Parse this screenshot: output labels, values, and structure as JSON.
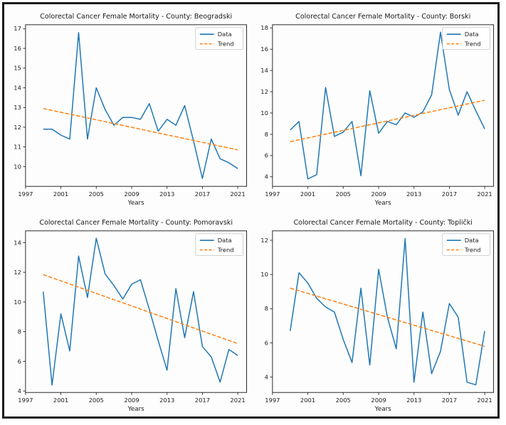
{
  "page": {
    "background": "#ffffff",
    "frame_color": "#1a1a1a"
  },
  "colors": {
    "data_line": "#1f77b4",
    "trend_line": "#ff7f0e"
  },
  "chart_data": [
    {
      "type": "line",
      "title": "Colorectal Cancer Female Mortality - County: Beogradski",
      "xlabel": "Years",
      "x": [
        1999,
        2000,
        2001,
        2002,
        2003,
        2004,
        2005,
        2006,
        2007,
        2008,
        2009,
        2010,
        2011,
        2012,
        2013,
        2014,
        2015,
        2016,
        2017,
        2018,
        2019,
        2020,
        2021
      ],
      "series": [
        {
          "name": "Data",
          "color": "#1f77b4",
          "style": "solid",
          "values": [
            11.9,
            11.9,
            11.6,
            11.4,
            16.8,
            11.4,
            14.0,
            12.9,
            12.1,
            12.5,
            12.5,
            12.4,
            13.2,
            11.8,
            12.4,
            12.1,
            13.1,
            11.3,
            9.4,
            11.4,
            10.4,
            10.2,
            9.9
          ]
        },
        {
          "name": "Trend",
          "color": "#ff7f0e",
          "style": "dashed",
          "x": [
            1999,
            2021
          ],
          "values": [
            12.95,
            10.85
          ]
        }
      ],
      "legend": {
        "position": "upper-right",
        "entries": [
          "Data",
          "Trend"
        ]
      },
      "grid": false,
      "xlim": [
        1997,
        2022
      ],
      "ylim": [
        9.0,
        17.2
      ],
      "xticks": [
        1997,
        2001,
        2005,
        2009,
        2013,
        2017,
        2021
      ],
      "yticks": [
        10,
        11,
        12,
        13,
        14,
        15,
        16,
        17
      ]
    },
    {
      "type": "line",
      "title": "Colorectal Cancer Female Mortality - County: Borski",
      "xlabel": "Years",
      "x": [
        1999,
        2000,
        2001,
        2002,
        2003,
        2004,
        2005,
        2006,
        2007,
        2008,
        2009,
        2010,
        2011,
        2012,
        2013,
        2014,
        2015,
        2016,
        2017,
        2018,
        2019,
        2020,
        2021
      ],
      "series": [
        {
          "name": "Data",
          "color": "#1f77b4",
          "style": "solid",
          "values": [
            8.4,
            9.2,
            3.8,
            4.2,
            12.4,
            7.8,
            8.2,
            9.2,
            4.1,
            12.1,
            8.1,
            9.2,
            8.9,
            10.0,
            9.6,
            10.1,
            11.7,
            17.6,
            12.2,
            9.8,
            12.0,
            10.2,
            8.5
          ]
        },
        {
          "name": "Trend",
          "color": "#ff7f0e",
          "style": "dashed",
          "x": [
            1999,
            2021
          ],
          "values": [
            7.3,
            11.2
          ]
        }
      ],
      "legend": {
        "position": "upper-right",
        "entries": [
          "Data",
          "Trend"
        ]
      },
      "grid": false,
      "xlim": [
        1997,
        2022
      ],
      "ylim": [
        3.1,
        18.3
      ],
      "xticks": [
        1997,
        2001,
        2005,
        2009,
        2013,
        2017,
        2021
      ],
      "yticks": [
        4,
        6,
        8,
        10,
        12,
        14,
        16,
        18
      ]
    },
    {
      "type": "line",
      "title": "Colorectal Cancer Female Mortality - County: Pomoravski",
      "xlabel": "Years",
      "x": [
        1999,
        2000,
        2001,
        2002,
        2003,
        2004,
        2005,
        2006,
        2007,
        2008,
        2009,
        2010,
        2011,
        2012,
        2013,
        2014,
        2015,
        2016,
        2017,
        2018,
        2019,
        2020,
        2021
      ],
      "series": [
        {
          "name": "Data",
          "color": "#1f77b4",
          "style": "solid",
          "values": [
            10.7,
            4.4,
            9.2,
            6.7,
            13.1,
            10.3,
            14.3,
            11.9,
            11.1,
            10.2,
            11.2,
            11.5,
            9.5,
            7.4,
            5.4,
            10.9,
            7.6,
            10.7,
            7.0,
            6.3,
            4.6,
            6.8,
            6.4
          ]
        },
        {
          "name": "Trend",
          "color": "#ff7f0e",
          "style": "dashed",
          "x": [
            1999,
            2021
          ],
          "values": [
            11.85,
            7.2
          ]
        }
      ],
      "legend": {
        "position": "upper-right",
        "entries": [
          "Data",
          "Trend"
        ]
      },
      "grid": false,
      "xlim": [
        1997,
        2022
      ],
      "ylim": [
        3.9,
        14.8
      ],
      "xticks": [
        1997,
        2001,
        2005,
        2009,
        2013,
        2017,
        2021
      ],
      "yticks": [
        4,
        6,
        8,
        10,
        12,
        14
      ]
    },
    {
      "type": "line",
      "title": "Colorectal Cancer Female Mortality - County: Toplički",
      "xlabel": "Years",
      "x": [
        1999,
        2000,
        2001,
        2002,
        2003,
        2004,
        2005,
        2006,
        2007,
        2008,
        2009,
        2010,
        2011,
        2012,
        2013,
        2014,
        2015,
        2016,
        2017,
        2018,
        2019,
        2020,
        2021
      ],
      "series": [
        {
          "name": "Data",
          "color": "#1f77b4",
          "style": "solid",
          "values": [
            6.7,
            10.1,
            9.5,
            8.6,
            8.1,
            7.8,
            6.2,
            4.85,
            9.2,
            4.7,
            10.3,
            7.5,
            5.65,
            12.1,
            3.7,
            7.8,
            4.2,
            5.5,
            8.3,
            7.5,
            3.7,
            3.55,
            6.7
          ]
        },
        {
          "name": "Trend",
          "color": "#ff7f0e",
          "style": "dashed",
          "x": [
            1999,
            2021
          ],
          "values": [
            9.2,
            5.8
          ]
        }
      ],
      "legend": {
        "position": "upper-right",
        "entries": [
          "Data",
          "Trend"
        ]
      },
      "grid": false,
      "xlim": [
        1997,
        2022
      ],
      "ylim": [
        3.1,
        12.55
      ],
      "xticks": [
        1997,
        2001,
        2005,
        2009,
        2013,
        2017,
        2021
      ],
      "yticks": [
        4,
        6,
        8,
        10,
        12
      ]
    }
  ]
}
